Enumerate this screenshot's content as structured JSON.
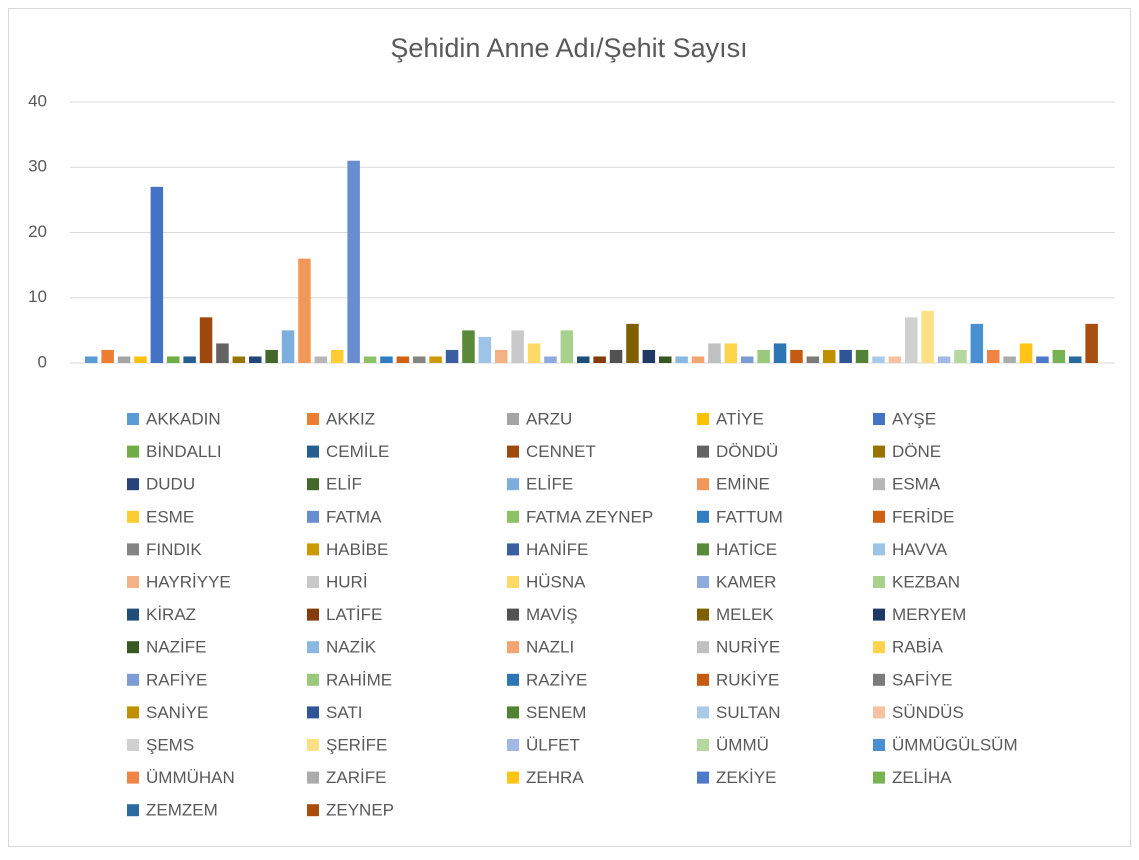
{
  "chart_data": {
    "type": "bar",
    "title": "Şehidin Anne Adı/Şehit Sayısı",
    "ylim": [
      0,
      40
    ],
    "yticks": [
      0,
      10,
      20,
      30,
      40
    ],
    "grid": true,
    "legend": "bottom",
    "series": [
      {
        "name": "AKKADIN",
        "color": "#5b9bd5",
        "values": [
          1
        ]
      },
      {
        "name": "AKKIZ",
        "color": "#ed7d31",
        "values": [
          2
        ]
      },
      {
        "name": "ARZU",
        "color": "#a5a5a5",
        "values": [
          1
        ]
      },
      {
        "name": "ATİYE",
        "color": "#ffc000",
        "values": [
          1
        ]
      },
      {
        "name": "AYŞE",
        "color": "#4472c4",
        "values": [
          27
        ]
      },
      {
        "name": "BİNDALLI",
        "color": "#70ad47",
        "values": [
          1
        ]
      },
      {
        "name": "CEMİLE",
        "color": "#255e91",
        "values": [
          1
        ]
      },
      {
        "name": "CENNET",
        "color": "#9e480e",
        "values": [
          7
        ]
      },
      {
        "name": "DÖNDÜ",
        "color": "#636363",
        "values": [
          3
        ]
      },
      {
        "name": "DÖNE",
        "color": "#997300",
        "values": [
          1
        ]
      },
      {
        "name": "DUDU",
        "color": "#264478",
        "values": [
          1
        ]
      },
      {
        "name": "ELİF",
        "color": "#43682b",
        "values": [
          2
        ]
      },
      {
        "name": "ELİFE",
        "color": "#7cafdd",
        "values": [
          5
        ]
      },
      {
        "name": "EMİNE",
        "color": "#f1975a",
        "values": [
          16
        ]
      },
      {
        "name": "ESMA",
        "color": "#b7b7b7",
        "values": [
          1
        ]
      },
      {
        "name": "ESME",
        "color": "#ffcd33",
        "values": [
          2
        ]
      },
      {
        "name": "FATMA",
        "color": "#698ed0",
        "values": [
          31
        ]
      },
      {
        "name": "FATMA ZEYNEP",
        "color": "#8cc168",
        "values": [
          1
        ]
      },
      {
        "name": "FATTUM",
        "color": "#327dc2",
        "values": [
          1
        ]
      },
      {
        "name": "FERİDE",
        "color": "#d26012",
        "values": [
          1
        ]
      },
      {
        "name": "FINDIK",
        "color": "#848484",
        "values": [
          1
        ]
      },
      {
        "name": "HABİBE",
        "color": "#cc9a00",
        "values": [
          1
        ]
      },
      {
        "name": "HANİFE",
        "color": "#3a5fa0",
        "values": [
          2
        ]
      },
      {
        "name": "HATİCE",
        "color": "#5a8a39",
        "values": [
          5
        ]
      },
      {
        "name": "HAVVA",
        "color": "#9dc3e6",
        "values": [
          4
        ]
      },
      {
        "name": "HAYRİYYE",
        "color": "#f4b183",
        "values": [
          2
        ]
      },
      {
        "name": "HURİ",
        "color": "#c9c9c9",
        "values": [
          5
        ]
      },
      {
        "name": "HÜSNA",
        "color": "#ffd966",
        "values": [
          3
        ]
      },
      {
        "name": "KAMER",
        "color": "#8faadc",
        "values": [
          1
        ]
      },
      {
        "name": "KEZBAN",
        "color": "#a9d18e",
        "values": [
          5
        ]
      },
      {
        "name": "KİRAZ",
        "color": "#1f4e79",
        "values": [
          1
        ]
      },
      {
        "name": "LATİFE",
        "color": "#843c0c",
        "values": [
          1
        ]
      },
      {
        "name": "MAVİŞ",
        "color": "#525252",
        "values": [
          2
        ]
      },
      {
        "name": "MELEK",
        "color": "#7f6000",
        "values": [
          6
        ]
      },
      {
        "name": "MERYEM",
        "color": "#203864",
        "values": [
          2
        ]
      },
      {
        "name": "NAZİFE",
        "color": "#385723",
        "values": [
          1
        ]
      },
      {
        "name": "NAZİK",
        "color": "#8ab8e0",
        "values": [
          1
        ]
      },
      {
        "name": "NAZLI",
        "color": "#f3a46f",
        "values": [
          1
        ]
      },
      {
        "name": "NURİYE",
        "color": "#c0c0c0",
        "values": [
          3
        ]
      },
      {
        "name": "RABİA",
        "color": "#ffd34d",
        "values": [
          3
        ]
      },
      {
        "name": "RAFİYE",
        "color": "#7c9cd6",
        "values": [
          1
        ]
      },
      {
        "name": "RAHİME",
        "color": "#9bc97b",
        "values": [
          2
        ]
      },
      {
        "name": "RAZİYE",
        "color": "#2e75b6",
        "values": [
          3
        ]
      },
      {
        "name": "RUKİYE",
        "color": "#c55a11",
        "values": [
          2
        ]
      },
      {
        "name": "SAFİYE",
        "color": "#7b7b7b",
        "values": [
          1
        ]
      },
      {
        "name": "SANİYE",
        "color": "#bf9000",
        "values": [
          2
        ]
      },
      {
        "name": "SATI",
        "color": "#2f5597",
        "values": [
          2
        ]
      },
      {
        "name": "SENEM",
        "color": "#548235",
        "values": [
          2
        ]
      },
      {
        "name": "SULTAN",
        "color": "#a9cbe9",
        "values": [
          1
        ]
      },
      {
        "name": "SÜNDÜS",
        "color": "#f6c2a0",
        "values": [
          1
        ]
      },
      {
        "name": "ŞEMS",
        "color": "#d0d0d0",
        "values": [
          7
        ]
      },
      {
        "name": "ŞERİFE",
        "color": "#ffe085",
        "values": [
          8
        ]
      },
      {
        "name": "ÜLFET",
        "color": "#a2b8e2",
        "values": [
          1
        ]
      },
      {
        "name": "ÜMMÜ",
        "color": "#b6d8a0",
        "values": [
          2
        ]
      },
      {
        "name": "ÜMMÜGÜLSÜM",
        "color": "#4a90d0",
        "values": [
          6
        ]
      },
      {
        "name": "ÜMMÜHAN",
        "color": "#ee8545",
        "values": [
          2
        ]
      },
      {
        "name": "ZARİFE",
        "color": "#ababab",
        "values": [
          1
        ]
      },
      {
        "name": "ZEHRA",
        "color": "#ffc416",
        "values": [
          3
        ]
      },
      {
        "name": "ZEKİYE",
        "color": "#4f7ac9",
        "values": [
          1
        ]
      },
      {
        "name": "ZELİHA",
        "color": "#78b352",
        "values": [
          2
        ]
      },
      {
        "name": "ZEMZEM",
        "color": "#2a6aa0",
        "values": [
          1
        ]
      },
      {
        "name": "ZEYNEP",
        "color": "#aa4e10",
        "values": [
          6
        ]
      }
    ]
  }
}
